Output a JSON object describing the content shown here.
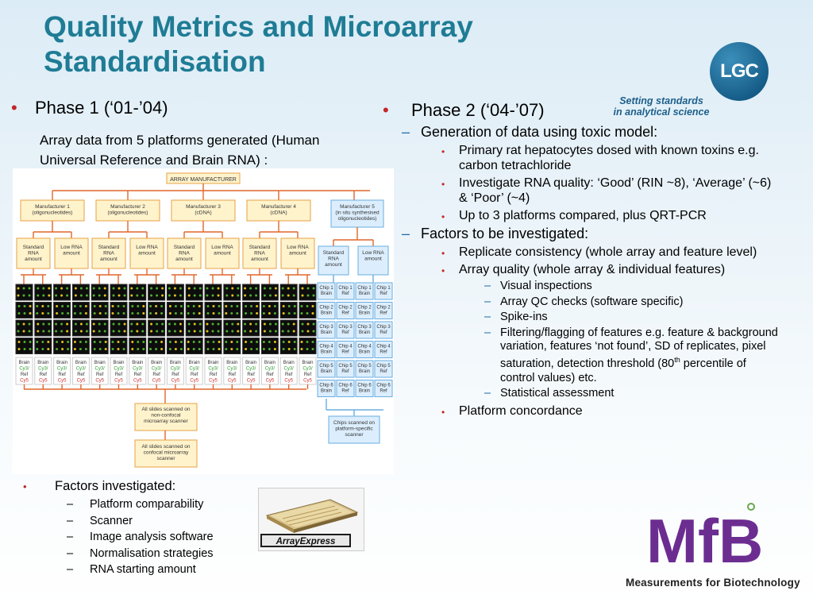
{
  "slide": {
    "title_line1": "Quality Metrics and Microarray",
    "title_line2": "Standardisation"
  },
  "branding": {
    "lgc_logo_text": "LGC",
    "lgc_tagline_line1": "Setting standards",
    "lgc_tagline_line2": "in analytical science",
    "mfb_logo_text": "MfB",
    "mfb_tagline": "Measurements for Biotechnology",
    "arrayexpress_label": "ArrayExpress"
  },
  "phase1": {
    "heading": "Phase 1 (‘01-’04)",
    "description": "Array data from 5 platforms generated (Human Universal Reference and Brain RNA) :"
  },
  "diagram": {
    "root": "ARRAY MANUFACTURER",
    "manufacturers": [
      {
        "name": "Manufacturer 1",
        "type": "(oligonucleotides)"
      },
      {
        "name": "Manufacturer 2",
        "type": "(oligonucleotides)"
      },
      {
        "name": "Manufacturer 3",
        "type": "(cDNA)"
      },
      {
        "name": "Manufacturer 4",
        "type": "(cDNA)"
      },
      {
        "name": "Manufacturer 5",
        "type": "(in situ synthesised oligonucleotides)"
      }
    ],
    "amount_labels": [
      "Standard RNA amount",
      "Low RNA amount"
    ],
    "chip_labels": [
      "Chip 1",
      "Chip 2",
      "Chip 3",
      "Chip 4",
      "Chip 5",
      "Chip 6"
    ],
    "chip_samples": [
      "Brain",
      "Ref"
    ],
    "slide_labels": [
      "Brain",
      "Cy3/",
      "Ref",
      "Cy5"
    ],
    "scan_nonconfocal": "All slides scanned on non-confocal microarray scanner",
    "scan_confocal": "All slides scanned on confocal microarray scanner",
    "scan_platform": "Chips scanned on platform-specific scanner"
  },
  "factors_investigated": {
    "heading": "Factors investigated:",
    "items": [
      "Platform comparability",
      "Scanner",
      "Image analysis software",
      "Normalisation strategies",
      "RNA starting amount"
    ]
  },
  "phase2": {
    "heading": "Phase 2 (‘04-’07)",
    "sections": [
      {
        "label": "Generation of data using toxic model:",
        "bullets": [
          {
            "text": "Primary rat hepatocytes dosed with known toxins e.g. carbon tetrachloride",
            "subs": []
          },
          {
            "text": "Investigate RNA quality: ‘Good’ (RIN ~8), ‘Average’ (~6) & ‘Poor’  (~4)",
            "subs": []
          },
          {
            "text": "Up to 3 platforms compared, plus QRT-PCR",
            "subs": []
          }
        ]
      },
      {
        "label": "Factors to be investigated:",
        "bullets": [
          {
            "text": "Replicate consistency (whole array and feature level)",
            "subs": []
          },
          {
            "text": "Array quality (whole array & individual features)",
            "subs": [
              "Visual inspections",
              "Array QC checks (software specific)",
              "Spike-ins",
              "Filtering/flagging of features e.g. feature & background variation, features ‘not found’, SD of replicates, pixel saturation, detection threshold (80th percentile of control values) etc.",
              "Statistical assessment"
            ]
          },
          {
            "text": "Platform concordance",
            "subs": []
          }
        ]
      }
    ]
  },
  "colors": {
    "title": "#1f7c95",
    "bullet_red": "#c22727",
    "dash_blue": "#1f6aa5",
    "diagram_box": "#fff3cc",
    "diagram_box_border": "#e7a045",
    "chip_box": "#dceefd",
    "chip_border": "#6aaee0",
    "mfb_purple": "#6c2d91"
  }
}
